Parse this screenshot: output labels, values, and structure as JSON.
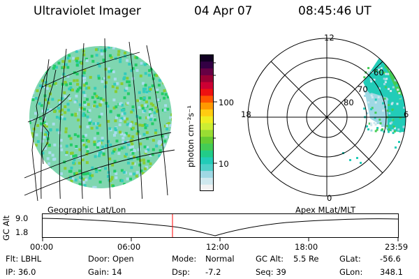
{
  "header": {
    "instrument": "Ultraviolet Imager",
    "date": "04 Apr 07",
    "time": "08:45:46 UT"
  },
  "colorbar": {
    "label": "photon cm⁻²s⁻¹",
    "ticks": [
      "100",
      "10"
    ],
    "colors": [
      "#f2f2f2",
      "#cfe8ee",
      "#9fd8e4",
      "#4fd0c8",
      "#22ccb8",
      "#22cc88",
      "#44cc55",
      "#66cc33",
      "#99dd33",
      "#ccee33",
      "#eeee22",
      "#ffcc11",
      "#ff9900",
      "#ff5500",
      "#ee1111",
      "#cc0033",
      "#990033",
      "#660044",
      "#330044",
      "#110022"
    ]
  },
  "left_panel": {
    "caption": "Geographic Lat/Lon",
    "disk_colors": [
      "#22cc66",
      "#aaddee",
      "#33ccbb",
      "#88cc33"
    ]
  },
  "right_panel": {
    "caption": "Apex MLat/MLT",
    "mlt_labels": {
      "top": "12",
      "left": "18",
      "right": "6",
      "bottom": "0"
    },
    "mlat_labels": [
      "80",
      "70",
      "60"
    ]
  },
  "altitude_plot": {
    "ylabel": "GC Alt",
    "yticks": [
      "9.0",
      "1.8"
    ],
    "xticks": [
      "00:00",
      "06:00",
      "12:00",
      "18:00",
      "23:59"
    ],
    "current_time_color": "#ff0000"
  },
  "info": {
    "flt": "Flt: LBHL",
    "ip": "IP: 36.0",
    "door": "Door: Open",
    "gain": "Gain: 14",
    "mode_label": "Mode:",
    "mode_value": "Normal",
    "dsp_label": "Dsp:",
    "dsp_value": "-7.2",
    "gcalt_label": "GC Alt:",
    "gcalt_value": "5.5 Re",
    "seq": "Seq: 39",
    "glat_label": "GLat:",
    "glat_value": "-56.6",
    "glon_label": "GLon:",
    "glon_value": "348.1"
  }
}
